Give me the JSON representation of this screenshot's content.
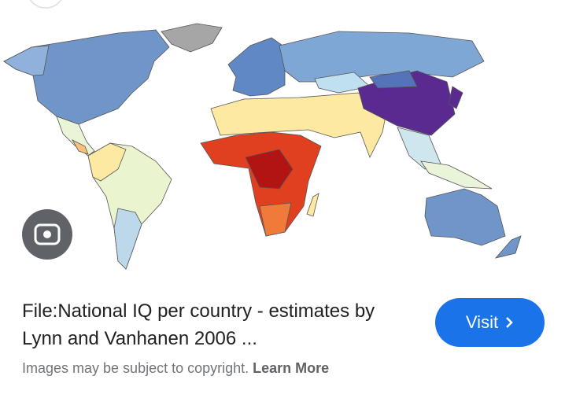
{
  "result": {
    "title": "File:National IQ per country - estimates by Lynn and Vanhanen 2006 ...",
    "notice": "Images may be subject to copyright.",
    "learn_more": "Learn More",
    "visit": "Visit"
  }
}
